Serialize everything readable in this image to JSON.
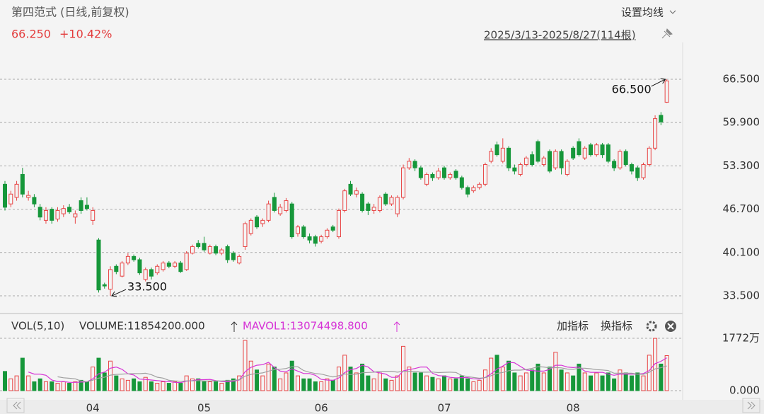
{
  "header": {
    "title": "第四范式 (日线,前复权)",
    "price": "66.250",
    "change": "+10.42%",
    "settings": "设置均线",
    "range": "2025/3/13-2025/8/27(114根)"
  },
  "indicator": {
    "name": "VOL(5,10)",
    "volume": "VOLUME:11854200.000",
    "mavol1": "MAVOL1:13074498.800",
    "buttons": [
      "加指标",
      "换指标"
    ]
  },
  "chart_data": [
    {
      "type": "candlestick",
      "up_color": "#e84545",
      "down_color": "#16973a",
      "grid": true,
      "categories": [
        null,
        null,
        null,
        null,
        null,
        null,
        null,
        null,
        null,
        null,
        null,
        null,
        null,
        null,
        null,
        "04",
        null,
        null,
        null,
        null,
        null,
        null,
        null,
        null,
        null,
        null,
        null,
        null,
        null,
        null,
        null,
        null,
        null,
        null,
        "05",
        null,
        null,
        null,
        null,
        null,
        null,
        null,
        null,
        null,
        null,
        null,
        null,
        null,
        null,
        null,
        null,
        null,
        null,
        null,
        "06",
        null,
        null,
        null,
        null,
        null,
        null,
        null,
        null,
        null,
        null,
        null,
        null,
        null,
        null,
        null,
        null,
        null,
        null,
        null,
        null,
        "07",
        null,
        null,
        null,
        null,
        null,
        null,
        null,
        null,
        null,
        null,
        null,
        null,
        null,
        null,
        null,
        null,
        null,
        null,
        null,
        null,
        null,
        "08",
        null,
        null,
        null,
        null,
        null,
        null,
        null,
        null,
        null,
        null,
        null,
        null,
        null,
        null,
        null,
        null
      ],
      "open": [
        50.5,
        47.5,
        48.5,
        52.0,
        48.5,
        48.5,
        47.0,
        45.0,
        46.7,
        45.2,
        46.0,
        47.0,
        45.5,
        48.0,
        47.3,
        45.0,
        42.0,
        35.2,
        34.5,
        38.0,
        36.5,
        38.5,
        39.5,
        39.0,
        36.0,
        37.5,
        37.0,
        37.5,
        38.5,
        38.0,
        38.5,
        37.5,
        40.0,
        41.5,
        41.5,
        40.0,
        41.0,
        40.0,
        41.0,
        40.0,
        38.5,
        41.0,
        43.0,
        45.5,
        44.5,
        45.0,
        48.5,
        46.0,
        46.5,
        47.5,
        43.0,
        44.0,
        42.5,
        42.5,
        41.8,
        42.5,
        44.0,
        42.5,
        46.5,
        50.5,
        49.0,
        49.0,
        47.5,
        46.5,
        46.5,
        49.0,
        47.5,
        46.0,
        48.5,
        53.0,
        54.0,
        53.0,
        50.5,
        52.0,
        51.5,
        53.0,
        51.5,
        52.5,
        51.5,
        50.0,
        49.5,
        50.0,
        50.5,
        54.0,
        56.5,
        54.0,
        56.0,
        53.0,
        52.0,
        53.5,
        55.0,
        57.0,
        53.5,
        55.5,
        53.0,
        55.5,
        52.0,
        56.0,
        57.0,
        54.5,
        56.5,
        55.0,
        56.5,
        56.5,
        54.0,
        53.0,
        55.5,
        53.5,
        53.0,
        51.5,
        53.5,
        56.0,
        61.0,
        63.0
      ],
      "high": [
        51.0,
        49.5,
        51.0,
        53.0,
        49.5,
        49.0,
        47.5,
        47.0,
        47.0,
        47.0,
        47.3,
        47.5,
        46.5,
        48.5,
        48.5,
        47.0,
        42.3,
        35.5,
        38.0,
        38.3,
        38.8,
        40.0,
        39.8,
        39.3,
        37.8,
        37.8,
        38.3,
        38.8,
        38.8,
        38.8,
        38.8,
        40.3,
        41.3,
        42.0,
        42.5,
        41.3,
        41.3,
        40.8,
        41.3,
        40.3,
        39.8,
        44.8,
        45.3,
        45.8,
        45.3,
        48.0,
        49.2,
        47.5,
        48.4,
        47.8,
        44.3,
        44.3,
        43.0,
        42.8,
        42.8,
        43.8,
        44.3,
        46.8,
        49.8,
        51.0,
        50.0,
        49.3,
        47.8,
        47.5,
        48.8,
        49.3,
        48.8,
        48.8,
        53.5,
        54.5,
        54.3,
        53.3,
        52.3,
        52.3,
        53.0,
        53.3,
        52.3,
        52.8,
        51.8,
        50.3,
        50.3,
        50.8,
        53.8,
        56.0,
        57.0,
        57.5,
        56.3,
        53.5,
        53.8,
        54.8,
        55.5,
        57.3,
        54.8,
        55.8,
        55.8,
        55.8,
        54.3,
        56.3,
        57.5,
        56.3,
        56.8,
        56.8,
        56.8,
        56.8,
        54.3,
        55.8,
        55.8,
        53.8,
        53.3,
        53.8,
        56.3,
        61.0,
        61.5,
        66.5
      ],
      "low": [
        46.5,
        47.0,
        48.0,
        48.5,
        48.0,
        47.0,
        45.0,
        44.5,
        44.5,
        44.8,
        45.5,
        46.0,
        44.5,
        46.0,
        46.5,
        44.3,
        34.0,
        34.6,
        33.5,
        36.8,
        36.3,
        38.2,
        38.7,
        36.7,
        35.7,
        36.0,
        36.7,
        37.2,
        37.7,
        37.7,
        37.0,
        37.3,
        39.8,
        40.7,
        40.2,
        39.8,
        39.7,
        39.7,
        38.5,
        38.7,
        38.3,
        40.5,
        42.7,
        43.7,
        44.0,
        44.7,
        46.2,
        45.7,
        46.2,
        42.2,
        42.5,
        42.2,
        41.5,
        41.0,
        41.5,
        42.2,
        43.2,
        42.2,
        46.2,
        48.7,
        48.5,
        46.2,
        45.8,
        46.0,
        46.2,
        47.2,
        47.2,
        45.5,
        48.2,
        52.7,
        52.5,
        51.2,
        50.2,
        51.0,
        51.2,
        51.2,
        51.2,
        51.2,
        49.7,
        48.5,
        49.2,
        49.7,
        50.2,
        53.7,
        54.7,
        53.7,
        52.5,
        52.0,
        51.7,
        53.2,
        53.2,
        53.7,
        53.2,
        52.2,
        52.7,
        52.0,
        51.7,
        54.2,
        54.7,
        54.2,
        54.7,
        54.7,
        54.5,
        53.7,
        52.5,
        52.7,
        53.2,
        52.0,
        51.0,
        51.2,
        53.2,
        55.7,
        59.5,
        62.9
      ],
      "close": [
        47.0,
        49.0,
        50.5,
        49.0,
        48.8,
        47.5,
        45.5,
        46.5,
        45.0,
        46.5,
        46.8,
        46.3,
        46.0,
        46.5,
        46.8,
        46.5,
        34.4,
        35.0,
        37.5,
        37.2,
        38.5,
        39.5,
        39.0,
        37.0,
        37.5,
        36.5,
        38.0,
        38.5,
        38.0,
        38.5,
        37.2,
        40.0,
        41.0,
        41.0,
        40.5,
        41.0,
        40.0,
        40.5,
        39.0,
        39.0,
        39.5,
        44.5,
        45.0,
        44.0,
        45.0,
        47.5,
        46.5,
        47.0,
        48.0,
        42.5,
        44.0,
        42.5,
        42.0,
        41.5,
        42.5,
        43.5,
        43.5,
        46.5,
        49.5,
        49.0,
        49.5,
        46.5,
        46.5,
        47.0,
        48.5,
        47.5,
        48.5,
        48.5,
        53.0,
        54.0,
        53.0,
        51.5,
        52.0,
        51.5,
        52.5,
        51.5,
        52.0,
        51.5,
        50.0,
        49.0,
        50.0,
        50.5,
        53.5,
        55.5,
        55.0,
        56.0,
        53.0,
        52.5,
        53.5,
        54.5,
        53.5,
        54.0,
        54.5,
        52.5,
        55.5,
        53.0,
        54.0,
        54.5,
        55.0,
        56.0,
        55.0,
        56.5,
        55.0,
        54.0,
        53.0,
        55.5,
        53.5,
        52.5,
        51.5,
        53.5,
        56.0,
        60.5,
        60.0,
        66.25
      ],
      "ylim": [
        31.13,
        68.33
      ],
      "yticks": [
        {
          "value": 33.5,
          "label": "33.500"
        },
        {
          "value": 40.1,
          "label": "40.100"
        },
        {
          "value": 46.7,
          "label": "46.700"
        },
        {
          "value": 53.3,
          "label": "53.300"
        },
        {
          "value": 59.9,
          "label": "59.900"
        },
        {
          "value": 66.5,
          "label": "66.500"
        }
      ],
      "annotations": [
        {
          "label": "66.500",
          "value": 66.5
        },
        {
          "label": "33.500",
          "value": 33.5
        }
      ]
    },
    {
      "type": "bar",
      "ma_colors": [
        "#d633d6",
        "#a0a0a0"
      ],
      "ma_periods": [
        5,
        10
      ],
      "values": [
        6500000,
        4000000,
        5000000,
        11000000,
        5000000,
        3000000,
        4000000,
        3000000,
        3000000,
        2500000,
        3000000,
        2500000,
        3000000,
        3500000,
        3000000,
        8000000,
        11000000,
        6000000,
        10000000,
        5000000,
        4000000,
        3500000,
        4000000,
        3000000,
        4500000,
        3000000,
        2500000,
        3000000,
        2500000,
        3000000,
        2500000,
        5000000,
        4000000,
        4000000,
        3000000,
        3000000,
        3000000,
        2500000,
        3500000,
        4000000,
        5000000,
        17000000,
        10000000,
        7000000,
        5000000,
        9000000,
        8000000,
        4000000,
        6000000,
        10000000,
        5000000,
        4000000,
        4000000,
        3000000,
        3000000,
        4000000,
        3500000,
        8000000,
        12000000,
        8000000,
        6000000,
        9000000,
        5000000,
        4000000,
        6000000,
        4000000,
        3500000,
        5000000,
        15000000,
        8000000,
        6000000,
        6000000,
        5000000,
        4500000,
        4000000,
        5000000,
        4000000,
        4000000,
        5000000,
        4000000,
        3000000,
        3500000,
        7000000,
        11000000,
        12000000,
        8000000,
        10000000,
        6000000,
        5000000,
        6000000,
        7000000,
        9000000,
        6000000,
        8000000,
        13000000,
        7000000,
        6000000,
        5000000,
        9000000,
        6000000,
        5000000,
        6000000,
        5000000,
        6000000,
        4000000,
        7000000,
        6000000,
        5000000,
        6000000,
        5000000,
        12000000,
        17700000,
        9000000,
        11854200
      ],
      "ylim": [
        0,
        17720000
      ],
      "yticks": [
        {
          "value": 0,
          "label": "0.000"
        },
        {
          "value": 17720000,
          "label": "1772万"
        }
      ]
    }
  ]
}
